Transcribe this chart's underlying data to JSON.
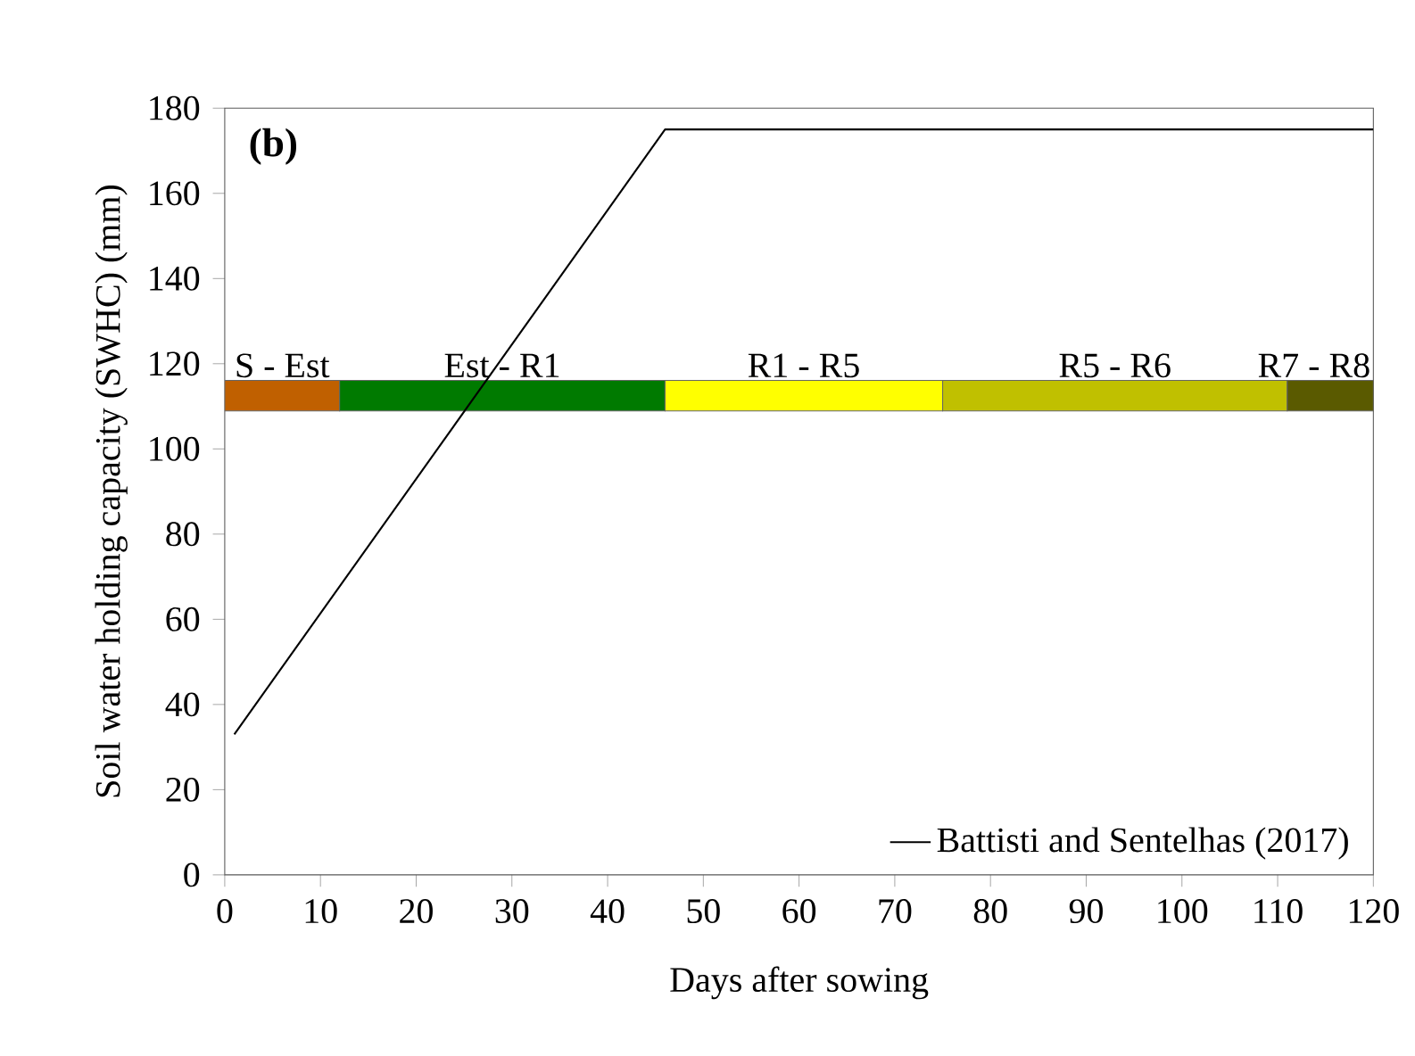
{
  "chart_data": {
    "type": "line",
    "xlabel": "Days after sowing",
    "ylabel": "Soil water holding capacity (SWHC) (mm)",
    "annotations": [
      "(b)"
    ],
    "series": [
      {
        "name": "Battisti and Sentelhas (2017)",
        "color": "#000000",
        "x": [
          1,
          46,
          120
        ],
        "values": [
          33,
          175,
          175
        ]
      }
    ],
    "bands": [
      {
        "axis": "x",
        "from": 0,
        "to": 12,
        "label": "S - Est",
        "color": "#c06000"
      },
      {
        "axis": "x",
        "from": 12,
        "to": 46,
        "label": "Est - R1",
        "color": "#007a00"
      },
      {
        "axis": "x",
        "from": 46,
        "to": 75,
        "label": "R1 - R5",
        "color": "#ffff00"
      },
      {
        "axis": "x",
        "from": 75,
        "to": 111,
        "label": "R5 - R6",
        "color": "#c0c000"
      },
      {
        "axis": "x",
        "from": 111,
        "to": 120,
        "label": "R7 - R8",
        "color": "#5a5a00"
      }
    ],
    "xlim": [
      0,
      120
    ],
    "ylim": [
      0,
      180
    ],
    "xticks": [
      0,
      10,
      20,
      30,
      40,
      50,
      60,
      70,
      80,
      90,
      100,
      110,
      120
    ],
    "yticks": [
      0,
      20,
      40,
      60,
      80,
      100,
      120,
      140,
      160,
      180
    ],
    "legend": "bottom right",
    "grid": false,
    "marker": "none",
    "line_style": "solid"
  }
}
